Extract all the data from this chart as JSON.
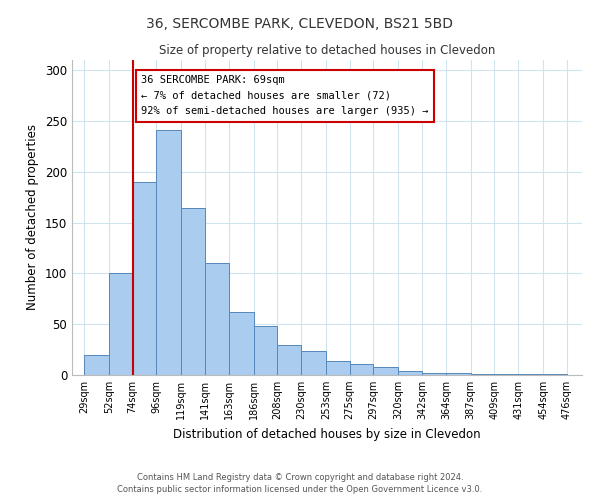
{
  "title": "36, SERCOMBE PARK, CLEVEDON, BS21 5BD",
  "subtitle": "Size of property relative to detached houses in Clevedon",
  "xlabel": "Distribution of detached houses by size in Clevedon",
  "ylabel": "Number of detached properties",
  "bar_left_edges": [
    29,
    52,
    74,
    96,
    119,
    141,
    163,
    186,
    208,
    230,
    253,
    275,
    297,
    320,
    342,
    364,
    387,
    409,
    431,
    454
  ],
  "bar_heights": [
    20,
    100,
    190,
    241,
    164,
    110,
    62,
    48,
    30,
    24,
    14,
    11,
    8,
    4,
    2,
    2,
    1,
    1,
    1,
    1
  ],
  "bar_widths": [
    23,
    22,
    22,
    23,
    22,
    22,
    23,
    22,
    22,
    23,
    22,
    22,
    23,
    22,
    22,
    23,
    22,
    22,
    23,
    22
  ],
  "tick_labels": [
    "29sqm",
    "52sqm",
    "74sqm",
    "96sqm",
    "119sqm",
    "141sqm",
    "163sqm",
    "186sqm",
    "208sqm",
    "230sqm",
    "253sqm",
    "275sqm",
    "297sqm",
    "320sqm",
    "342sqm",
    "364sqm",
    "387sqm",
    "409sqm",
    "431sqm",
    "454sqm",
    "476sqm"
  ],
  "tick_positions": [
    29,
    52,
    74,
    96,
    119,
    141,
    163,
    186,
    208,
    230,
    253,
    275,
    297,
    320,
    342,
    364,
    387,
    409,
    431,
    454,
    476
  ],
  "bar_color": "#aaccee",
  "bar_edge_color": "#5588bb",
  "marker_x": 74,
  "marker_color": "#cc0000",
  "ylim": [
    0,
    310
  ],
  "xlim": [
    18,
    490
  ],
  "annotation_lines": [
    "36 SERCOMBE PARK: 69sqm",
    "← 7% of detached houses are smaller (72)",
    "92% of semi-detached houses are larger (935) →"
  ],
  "footer_line1": "Contains HM Land Registry data © Crown copyright and database right 2024.",
  "footer_line2": "Contains public sector information licensed under the Open Government Licence v3.0.",
  "yticks": [
    0,
    50,
    100,
    150,
    200,
    250,
    300
  ],
  "grid_color": "#d0e4f0"
}
